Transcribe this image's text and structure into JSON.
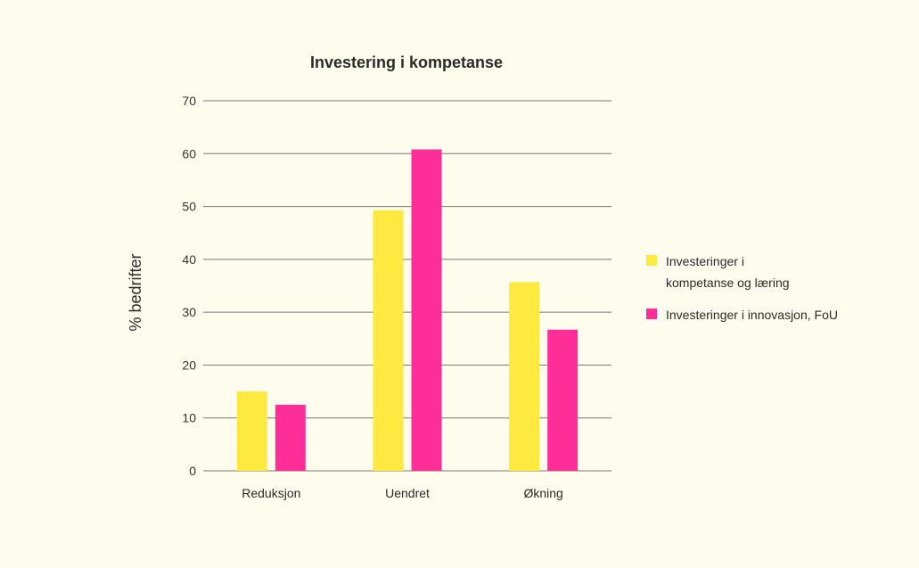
{
  "chart_data": {
    "type": "bar",
    "title": "Investering i kompetanse",
    "ylabel": "% bedrifter",
    "xlabel": "",
    "categories": [
      "Reduksjon",
      "Uendret",
      "Økning"
    ],
    "ylim": [
      0,
      70
    ],
    "yticks": [
      0,
      10,
      20,
      30,
      40,
      50,
      60,
      70
    ],
    "grid": true,
    "legend_position": "right",
    "series": [
      {
        "name": "Investeringer i kompetanse og læring",
        "name_lines": [
          "Investeringer i",
          "kompetanse og læring"
        ],
        "color": "#fde93f",
        "values": [
          15,
          49.3,
          35.7
        ]
      },
      {
        "name": "Investeringer i innovasjon, FoU",
        "name_lines": [
          "Investeringer i innovasjon, FoU"
        ],
        "color": "#fd2e97",
        "values": [
          12.5,
          60.8,
          26.7
        ]
      }
    ]
  }
}
